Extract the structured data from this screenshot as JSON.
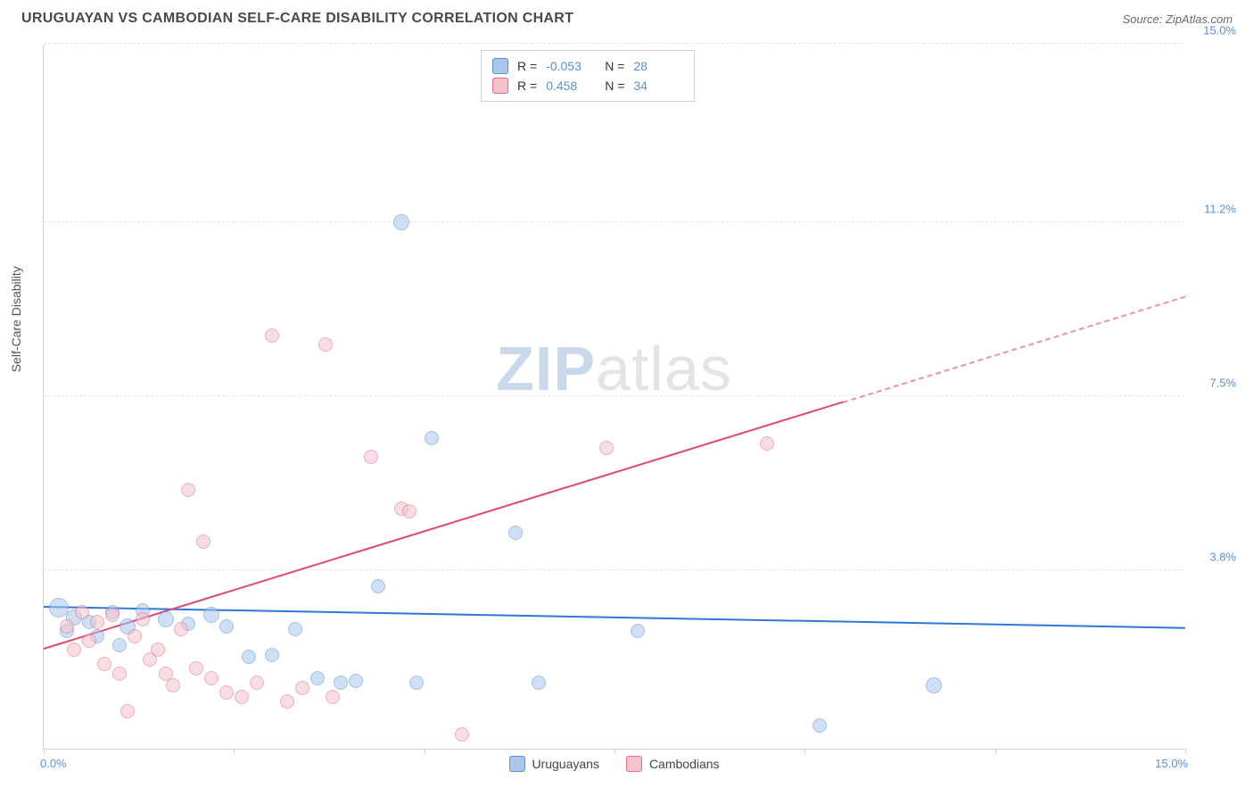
{
  "header": {
    "title": "URUGUAYAN VS CAMBODIAN SELF-CARE DISABILITY CORRELATION CHART",
    "source": "Source: ZipAtlas.com"
  },
  "watermark": {
    "part1": "ZIP",
    "part2": "atlas"
  },
  "chart": {
    "type": "scatter",
    "y_axis_title": "Self-Care Disability",
    "xlim": [
      0,
      15
    ],
    "ylim": [
      0,
      15
    ],
    "x_tick_positions": [
      0,
      2.5,
      5,
      7.5,
      10,
      12.5,
      15
    ],
    "x_labels": {
      "min": "0.0%",
      "max": "15.0%"
    },
    "y_gridlines": [
      {
        "value": 3.8,
        "label": "3.8%"
      },
      {
        "value": 7.5,
        "label": "7.5%"
      },
      {
        "value": 11.2,
        "label": "11.2%"
      },
      {
        "value": 15.0,
        "label": "15.0%"
      }
    ],
    "grid_color": "#e6e6e6",
    "axis_color": "#d0d0d0",
    "label_color": "#5b8fd6",
    "background_color": "#ffffff",
    "label_fontsize": 13,
    "title_fontsize": 16,
    "series": [
      {
        "name": "Uruguayans",
        "fill": "#a9c7ec",
        "stroke": "#5b8fd6",
        "fill_opacity": 0.55,
        "marker_radius": 8,
        "R": "-0.053",
        "N": "28",
        "trend": {
          "x1": 0,
          "y1": 3.0,
          "x2": 15,
          "y2": 2.55,
          "color": "#2f78d4",
          "width": 2,
          "dashed_from": null
        },
        "points": [
          {
            "x": 0.2,
            "y": 3.0,
            "r": 11
          },
          {
            "x": 0.4,
            "y": 2.8,
            "r": 9
          },
          {
            "x": 0.6,
            "y": 2.7,
            "r": 8
          },
          {
            "x": 0.9,
            "y": 2.9,
            "r": 8
          },
          {
            "x": 1.1,
            "y": 2.6,
            "r": 9
          },
          {
            "x": 1.3,
            "y": 2.95,
            "r": 8
          },
          {
            "x": 1.6,
            "y": 2.75,
            "r": 9
          },
          {
            "x": 1.9,
            "y": 2.65,
            "r": 8
          },
          {
            "x": 2.2,
            "y": 2.85,
            "r": 9
          },
          {
            "x": 2.4,
            "y": 2.6,
            "r": 8
          },
          {
            "x": 2.7,
            "y": 1.95,
            "r": 8
          },
          {
            "x": 3.0,
            "y": 2.0,
            "r": 8
          },
          {
            "x": 3.3,
            "y": 2.55,
            "r": 8
          },
          {
            "x": 3.6,
            "y": 1.5,
            "r": 8
          },
          {
            "x": 3.9,
            "y": 1.4,
            "r": 8
          },
          {
            "x": 4.1,
            "y": 1.45,
            "r": 8
          },
          {
            "x": 4.4,
            "y": 3.45,
            "r": 8
          },
          {
            "x": 4.7,
            "y": 11.2,
            "r": 9
          },
          {
            "x": 4.9,
            "y": 1.4,
            "r": 8
          },
          {
            "x": 5.1,
            "y": 6.6,
            "r": 8
          },
          {
            "x": 6.2,
            "y": 4.6,
            "r": 8
          },
          {
            "x": 6.5,
            "y": 1.4,
            "r": 8
          },
          {
            "x": 7.8,
            "y": 2.5,
            "r": 8
          },
          {
            "x": 10.2,
            "y": 0.5,
            "r": 8
          },
          {
            "x": 11.7,
            "y": 1.35,
            "r": 9
          },
          {
            "x": 0.3,
            "y": 2.5,
            "r": 8
          },
          {
            "x": 0.7,
            "y": 2.4,
            "r": 8
          },
          {
            "x": 1.0,
            "y": 2.2,
            "r": 8
          }
        ]
      },
      {
        "name": "Cambodians",
        "fill": "#f4c2cd",
        "stroke": "#e26b88",
        "fill_opacity": 0.55,
        "marker_radius": 8,
        "R": "0.458",
        "N": "34",
        "trend": {
          "x1": 0,
          "y1": 2.1,
          "x2": 15,
          "y2": 9.6,
          "color": "#e04a6d",
          "width": 2,
          "dashed_from": 10.5
        },
        "points": [
          {
            "x": 0.3,
            "y": 2.6,
            "r": 8
          },
          {
            "x": 0.5,
            "y": 2.9,
            "r": 8
          },
          {
            "x": 0.6,
            "y": 2.3,
            "r": 8
          },
          {
            "x": 0.8,
            "y": 1.8,
            "r": 8
          },
          {
            "x": 1.0,
            "y": 1.6,
            "r": 8
          },
          {
            "x": 1.1,
            "y": 0.8,
            "r": 8
          },
          {
            "x": 1.3,
            "y": 2.75,
            "r": 8
          },
          {
            "x": 1.5,
            "y": 2.1,
            "r": 8
          },
          {
            "x": 1.6,
            "y": 1.6,
            "r": 8
          },
          {
            "x": 1.8,
            "y": 2.55,
            "r": 8
          },
          {
            "x": 1.9,
            "y": 5.5,
            "r": 8
          },
          {
            "x": 2.1,
            "y": 4.4,
            "r": 8
          },
          {
            "x": 2.2,
            "y": 1.5,
            "r": 8
          },
          {
            "x": 2.4,
            "y": 1.2,
            "r": 8
          },
          {
            "x": 2.6,
            "y": 1.1,
            "r": 8
          },
          {
            "x": 2.8,
            "y": 1.4,
            "r": 8
          },
          {
            "x": 3.0,
            "y": 8.8,
            "r": 8
          },
          {
            "x": 3.2,
            "y": 1.0,
            "r": 8
          },
          {
            "x": 3.4,
            "y": 1.3,
            "r": 8
          },
          {
            "x": 3.7,
            "y": 8.6,
            "r": 8
          },
          {
            "x": 3.8,
            "y": 1.1,
            "r": 8
          },
          {
            "x": 4.3,
            "y": 6.2,
            "r": 8
          },
          {
            "x": 4.7,
            "y": 5.1,
            "r": 8
          },
          {
            "x": 4.8,
            "y": 5.05,
            "r": 8
          },
          {
            "x": 5.5,
            "y": 0.3,
            "r": 8
          },
          {
            "x": 7.4,
            "y": 6.4,
            "r": 8
          },
          {
            "x": 9.5,
            "y": 6.5,
            "r": 8
          },
          {
            "x": 0.4,
            "y": 2.1,
            "r": 8
          },
          {
            "x": 0.7,
            "y": 2.7,
            "r": 8
          },
          {
            "x": 0.9,
            "y": 2.85,
            "r": 8
          },
          {
            "x": 1.2,
            "y": 2.4,
            "r": 8
          },
          {
            "x": 1.4,
            "y": 1.9,
            "r": 8
          },
          {
            "x": 1.7,
            "y": 1.35,
            "r": 8
          },
          {
            "x": 2.0,
            "y": 1.7,
            "r": 8
          }
        ]
      }
    ],
    "stats_box": {
      "rows": [
        {
          "swatch_fill": "#a9c7ec",
          "swatch_stroke": "#5b8fd6",
          "R_label": "R =",
          "R_value": "-0.053",
          "N_label": "N =",
          "N_value": "28"
        },
        {
          "swatch_fill": "#f4c2cd",
          "swatch_stroke": "#e26b88",
          "R_label": "R =",
          "R_value": "0.458",
          "N_label": "N =",
          "N_value": "34"
        }
      ]
    },
    "legend": [
      {
        "swatch_fill": "#a9c7ec",
        "swatch_stroke": "#5b8fd6",
        "label": "Uruguayans"
      },
      {
        "swatch_fill": "#f4c2cd",
        "swatch_stroke": "#e26b88",
        "label": "Cambodians"
      }
    ]
  }
}
